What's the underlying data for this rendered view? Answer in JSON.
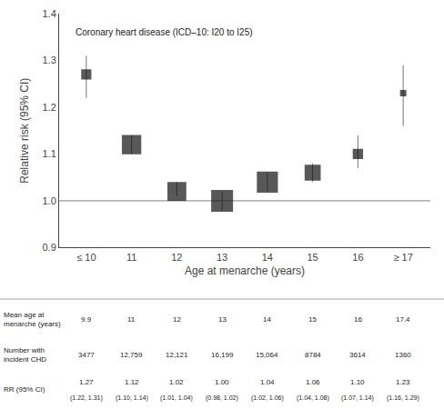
{
  "chart_data": {
    "type": "forest",
    "categories": [
      "≤ 10",
      "11",
      "12",
      "13",
      "14",
      "15",
      "16",
      "≥ 17"
    ],
    "values": [
      1.27,
      1.12,
      1.02,
      1.0,
      1.04,
      1.06,
      1.1,
      1.23
    ],
    "ci": {
      "low": [
        1.22,
        1.1,
        1.01,
        0.98,
        1.02,
        1.04,
        1.07,
        1.16
      ],
      "high": [
        1.31,
        1.14,
        1.04,
        1.02,
        1.06,
        1.08,
        1.14,
        1.29
      ],
      "color": "#777777"
    },
    "n": [
      3477,
      12759,
      12121,
      16199,
      15064,
      8784,
      3614,
      1360
    ],
    "color": "#111111",
    "marker": "square",
    "ref_line": 1.0,
    "xlabel": "Age at menarche (years)",
    "ylabel": "Relative risk (95% CI)",
    "annotation": "Coronary heart disease (ICD–10: I20 to I25)",
    "ylim": [
      0.9,
      1.4
    ],
    "yticks": [
      0.9,
      {
        "value": 1.0,
        "label": "1.0"
      },
      1.1,
      1.2,
      1.3,
      1.4
    ],
    "grid": false,
    "table": {
      "rows": [
        {
          "label": "Mean age at\nmenarche (years)",
          "cells": [
            "9.9",
            "11",
            "12",
            "13",
            "14",
            "15",
            "16",
            "17.4"
          ]
        },
        {
          "label": "Number with\nincident CHD",
          "cells": [
            "3477",
            "12,759",
            "12,121",
            "16,199",
            "15,064",
            "8784",
            "3614",
            "1360"
          ]
        },
        {
          "label": "RR (95% CI)",
          "cells": [
            "1.27",
            "1.12",
            "1.02",
            "1.00",
            "1.04",
            "1.06",
            "1.10",
            "1.23"
          ],
          "subcells": [
            "(1.22, 1.31)",
            "(1.10, 1.14)",
            "(1.01, 1.04)",
            "(0.98, 1.02)",
            "(1.02, 1.06)",
            "(1.04, 1.08)",
            "(1.07, 1.14)",
            "(1.16, 1.29)"
          ]
        }
      ]
    }
  }
}
